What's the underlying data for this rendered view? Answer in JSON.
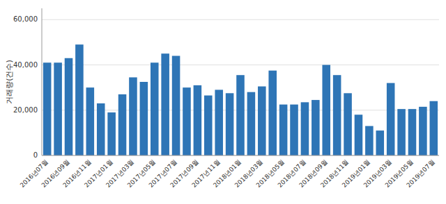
{
  "chart_data": {
    "type": "bar",
    "y_label": "거래량(건수)",
    "categories": [
      "2016년07월",
      null,
      "2016년09월",
      null,
      "2016년11월",
      null,
      "2017년01월",
      null,
      "2017년03월",
      null,
      "2017년05월",
      null,
      "2017년07월",
      null,
      "2017년09월",
      null,
      "2017년11월",
      null,
      "2018년01월",
      null,
      "2018년03월",
      null,
      "2018년05월",
      null,
      "2018년07월",
      null,
      "2018년09월",
      null,
      "2018년11월",
      null,
      "2019년01월",
      null,
      "2019년03월",
      null,
      "2019년05월",
      null,
      "2019년07월"
    ],
    "values": [
      41000,
      41000,
      43000,
      49000,
      30000,
      23000,
      19000,
      27000,
      34500,
      32500,
      41000,
      45000,
      44000,
      30000,
      31000,
      26500,
      29000,
      27500,
      35500,
      28000,
      30500,
      37500,
      22500,
      22500,
      23500,
      24500,
      40000,
      35500,
      27500,
      18000,
      13000,
      11000,
      32000,
      20500,
      20500,
      21500,
      24000
    ],
    "color": "#2e75b6",
    "ylim": [
      0,
      65000
    ],
    "yticks": [
      0,
      {
        "value": 20000,
        "label": "20,000"
      },
      {
        "value": 40000,
        "label": "40,000"
      },
      {
        "value": 60000,
        "label": "60,000"
      }
    ],
    "grid": true
  }
}
